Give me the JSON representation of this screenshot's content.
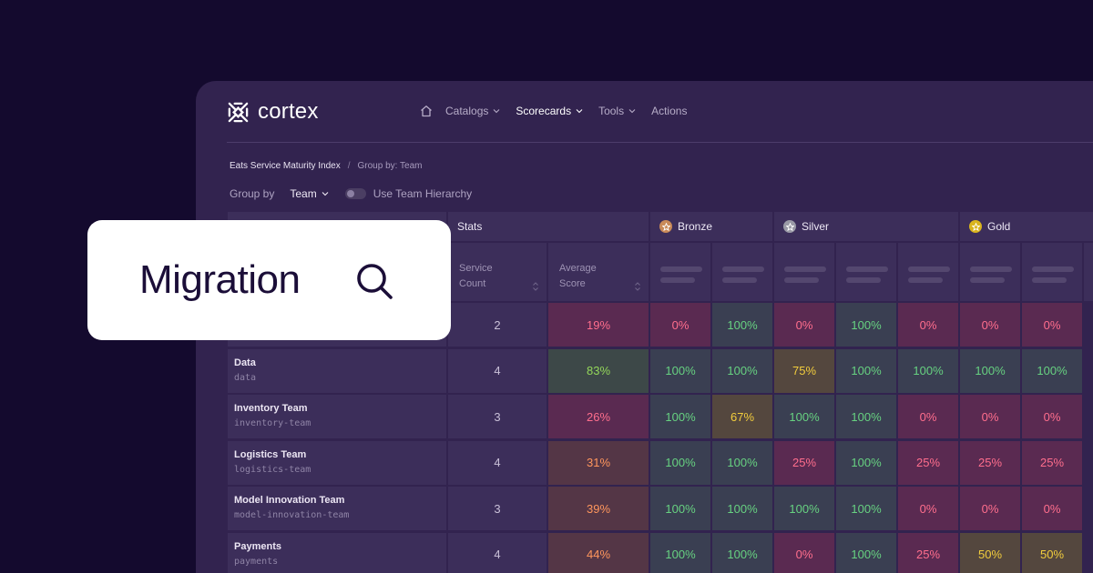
{
  "app": {
    "brand": "cortex",
    "nav": [
      {
        "label": "Catalogs",
        "dropdown": true,
        "active": false
      },
      {
        "label": "Scorecards",
        "dropdown": true,
        "active": true
      },
      {
        "label": "Tools",
        "dropdown": true,
        "active": false
      },
      {
        "label": "Actions",
        "dropdown": false,
        "active": false
      }
    ],
    "breadcrumb": {
      "main": "Eats Service Maturity Index",
      "separator": "/",
      "sub": "Group by: Team"
    },
    "groupby": {
      "label": "Group by",
      "value": "Team",
      "toggle_label": "Use Team Hierarchy",
      "toggle_on": false
    }
  },
  "table": {
    "groups": [
      {
        "label": "Stats",
        "icon": null
      },
      {
        "label": "Bronze",
        "icon": "bronze-medal-icon",
        "color": "#c98a58"
      },
      {
        "label": "Silver",
        "icon": "silver-medal-icon",
        "color": "#9a9aa6"
      },
      {
        "label": "Gold",
        "icon": "gold-medal-icon",
        "color": "#d9b41e"
      }
    ],
    "stat_headers": [
      "Service Count",
      "Average Score"
    ],
    "rows": [
      {
        "name": "",
        "slug": "",
        "count": "2",
        "values": [
          {
            "v": "19%",
            "c": "red"
          },
          {
            "v": "0%",
            "c": "red"
          },
          {
            "v": "100%",
            "c": "green"
          },
          {
            "v": "0%",
            "c": "red"
          },
          {
            "v": "100%",
            "c": "green"
          },
          {
            "v": "0%",
            "c": "red"
          },
          {
            "v": "0%",
            "c": "red"
          },
          {
            "v": "0%",
            "c": "red"
          }
        ]
      },
      {
        "name": "Data",
        "slug": "data",
        "count": "4",
        "values": [
          {
            "v": "83%",
            "c": "lgreen"
          },
          {
            "v": "100%",
            "c": "green"
          },
          {
            "v": "100%",
            "c": "green"
          },
          {
            "v": "75%",
            "c": "yellow"
          },
          {
            "v": "100%",
            "c": "green"
          },
          {
            "v": "100%",
            "c": "green"
          },
          {
            "v": "100%",
            "c": "green"
          },
          {
            "v": "100%",
            "c": "green"
          }
        ]
      },
      {
        "name": "Inventory Team",
        "slug": "inventory-team",
        "count": "3",
        "values": [
          {
            "v": "26%",
            "c": "red"
          },
          {
            "v": "100%",
            "c": "green"
          },
          {
            "v": "67%",
            "c": "yellow"
          },
          {
            "v": "100%",
            "c": "green"
          },
          {
            "v": "100%",
            "c": "green"
          },
          {
            "v": "0%",
            "c": "red"
          },
          {
            "v": "0%",
            "c": "red"
          },
          {
            "v": "0%",
            "c": "red"
          }
        ]
      },
      {
        "name": "Logistics Team",
        "slug": "logistics-team",
        "count": "4",
        "values": [
          {
            "v": "31%",
            "c": "orange"
          },
          {
            "v": "100%",
            "c": "green"
          },
          {
            "v": "100%",
            "c": "green"
          },
          {
            "v": "25%",
            "c": "red"
          },
          {
            "v": "100%",
            "c": "green"
          },
          {
            "v": "25%",
            "c": "red"
          },
          {
            "v": "25%",
            "c": "red"
          },
          {
            "v": "25%",
            "c": "red"
          }
        ]
      },
      {
        "name": "Model Innovation Team",
        "slug": "model-innovation-team",
        "count": "3",
        "values": [
          {
            "v": "39%",
            "c": "orange"
          },
          {
            "v": "100%",
            "c": "green"
          },
          {
            "v": "100%",
            "c": "green"
          },
          {
            "v": "100%",
            "c": "green"
          },
          {
            "v": "100%",
            "c": "green"
          },
          {
            "v": "0%",
            "c": "red"
          },
          {
            "v": "0%",
            "c": "red"
          },
          {
            "v": "0%",
            "c": "red"
          }
        ]
      },
      {
        "name": "Payments",
        "slug": "payments",
        "count": "4",
        "values": [
          {
            "v": "44%",
            "c": "orange"
          },
          {
            "v": "100%",
            "c": "green"
          },
          {
            "v": "100%",
            "c": "green"
          },
          {
            "v": "0%",
            "c": "red"
          },
          {
            "v": "100%",
            "c": "green"
          },
          {
            "v": "25%",
            "c": "red"
          },
          {
            "v": "50%",
            "c": "yellow"
          },
          {
            "v": "50%",
            "c": "yellow"
          }
        ]
      }
    ]
  },
  "search": {
    "text": "Migration"
  }
}
